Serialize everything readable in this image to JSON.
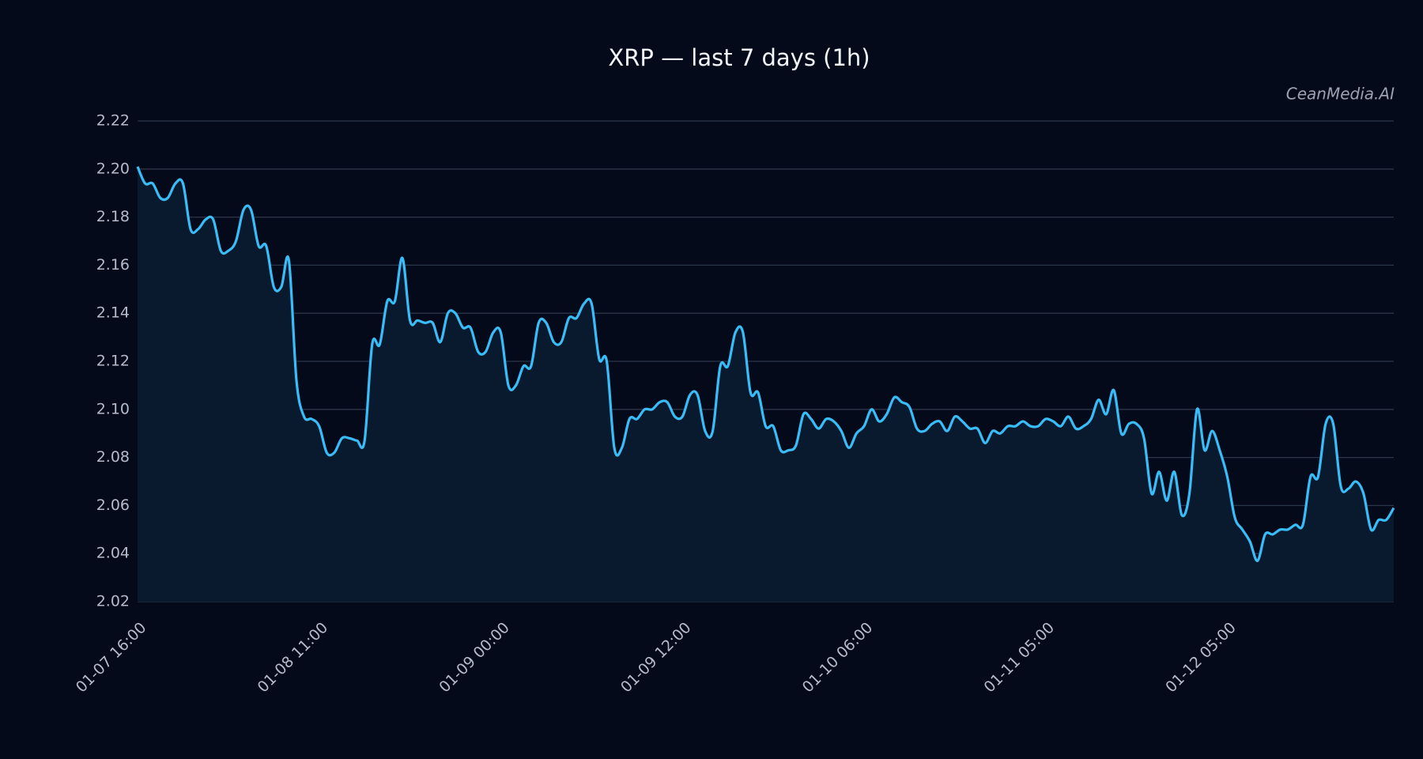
{
  "chart_data": {
    "type": "line",
    "title": "XRP — last 7 days (1h)",
    "watermark": "CeanMedia.AI",
    "categories": [
      "01-07 16:00",
      null,
      null,
      null,
      null,
      null,
      null,
      null,
      null,
      null,
      null,
      null,
      null,
      null,
      null,
      null,
      null,
      null,
      null,
      null,
      null,
      null,
      null,
      null,
      "01-08 11:00",
      null,
      null,
      null,
      null,
      null,
      null,
      null,
      null,
      null,
      null,
      null,
      null,
      null,
      null,
      null,
      null,
      null,
      null,
      null,
      null,
      null,
      null,
      null,
      "01-09 00:00",
      null,
      null,
      null,
      null,
      null,
      null,
      null,
      null,
      null,
      null,
      null,
      null,
      null,
      null,
      null,
      null,
      null,
      null,
      null,
      null,
      null,
      null,
      null,
      "01-09 12:00",
      null,
      null,
      null,
      null,
      null,
      null,
      null,
      null,
      null,
      null,
      null,
      null,
      null,
      null,
      null,
      null,
      null,
      null,
      null,
      null,
      null,
      null,
      null,
      "01-10 06:00",
      null,
      null,
      null,
      null,
      null,
      null,
      null,
      null,
      null,
      null,
      null,
      null,
      null,
      null,
      null,
      null,
      null,
      null,
      null,
      null,
      null,
      null,
      null,
      "01-11 05:00",
      null,
      null,
      null,
      null,
      null,
      null,
      null,
      null,
      null,
      null,
      null,
      null,
      null,
      null,
      null,
      null,
      null,
      null,
      null,
      null,
      null,
      null,
      null,
      "01-12 05:00",
      null,
      null,
      null,
      null,
      null,
      null,
      null,
      null,
      null,
      null,
      null,
      null,
      null,
      null,
      null,
      null,
      null,
      null,
      null,
      null,
      null,
      null
    ],
    "series": [
      {
        "name": "XRP",
        "color": "#38bdf8",
        "values": [
          2.201,
          2.194,
          2.194,
          2.188,
          2.188,
          2.194,
          2.194,
          2.175,
          2.175,
          2.179,
          2.179,
          2.166,
          2.166,
          2.17,
          2.183,
          2.183,
          2.168,
          2.168,
          2.151,
          2.151,
          2.162,
          2.112,
          2.097,
          2.096,
          2.093,
          2.082,
          2.082,
          2.088,
          2.088,
          2.087,
          2.087,
          2.127,
          2.127,
          2.145,
          2.145,
          2.163,
          2.137,
          2.137,
          2.136,
          2.136,
          2.128,
          2.14,
          2.14,
          2.134,
          2.134,
          2.124,
          2.124,
          2.132,
          2.132,
          2.11,
          2.11,
          2.118,
          2.118,
          2.136,
          2.136,
          2.128,
          2.128,
          2.138,
          2.138,
          2.144,
          2.144,
          2.121,
          2.12,
          2.084,
          2.084,
          2.096,
          2.096,
          2.1,
          2.1,
          2.103,
          2.103,
          2.097,
          2.097,
          2.106,
          2.106,
          2.091,
          2.091,
          2.118,
          2.118,
          2.132,
          2.132,
          2.107,
          2.107,
          2.093,
          2.093,
          2.083,
          2.083,
          2.085,
          2.098,
          2.096,
          2.092,
          2.096,
          2.095,
          2.091,
          2.084,
          2.09,
          2.093,
          2.1,
          2.095,
          2.098,
          2.105,
          2.103,
          2.101,
          2.092,
          2.091,
          2.094,
          2.095,
          2.091,
          2.097,
          2.095,
          2.092,
          2.092,
          2.086,
          2.091,
          2.09,
          2.093,
          2.093,
          2.095,
          2.093,
          2.093,
          2.096,
          2.095,
          2.093,
          2.097,
          2.092,
          2.093,
          2.096,
          2.104,
          2.098,
          2.108,
          2.09,
          2.094,
          2.094,
          2.088,
          2.065,
          2.074,
          2.062,
          2.074,
          2.056,
          2.065,
          2.1,
          2.083,
          2.091,
          2.083,
          2.072,
          2.055,
          2.05,
          2.045,
          2.037,
          2.048,
          2.048,
          2.05,
          2.05,
          2.052,
          2.052,
          2.072,
          2.072,
          2.094,
          2.094,
          2.068,
          2.067,
          2.07,
          2.065,
          2.05,
          2.054,
          2.054,
          2.059
        ]
      }
    ],
    "ylim": [
      2.02,
      2.22
    ],
    "yticks": [
      2.02,
      2.04,
      2.06,
      2.08,
      {
        "value": 2.1,
        "label": "2.10"
      },
      2.12,
      2.14,
      2.16,
      2.18,
      {
        "value": 2.2,
        "label": "2.20"
      },
      2.22
    ],
    "grid": true,
    "area_fill": "#0a1a2e"
  }
}
